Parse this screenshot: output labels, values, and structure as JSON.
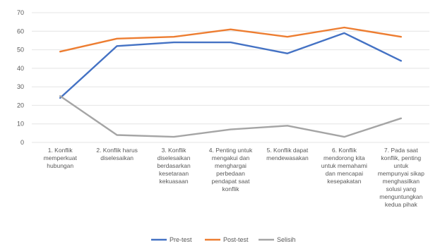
{
  "chart_data": {
    "type": "line",
    "title": "",
    "xlabel": "",
    "ylabel": "",
    "ylim": [
      0,
      70
    ],
    "y_ticks": [
      "0",
      "10",
      "20",
      "30",
      "40",
      "50",
      "60",
      "70"
    ],
    "grid": true,
    "legend_position": "bottom",
    "categories": [
      [
        "1. Konflik",
        "memperkuat",
        "hubungan"
      ],
      [
        "2. Konflik harus",
        "diselesaikan"
      ],
      [
        "3. Konflik",
        "diselesaikan",
        "berdasarkan",
        "kesetaraan",
        "kekuasaan"
      ],
      [
        "4. Penting untuk",
        "mengakui dan",
        "menghargai",
        "perbedaan",
        "pendapat saat",
        "konflik"
      ],
      [
        "5. Konflik dapat",
        "mendewasakan"
      ],
      [
        "6. Konflik",
        "mendorong kita",
        "untuk memahami",
        "dan mencapai",
        "kesepakatan"
      ],
      [
        "7. Pada saat",
        "konflik, penting",
        "untuk",
        "mempunyai sikap",
        "menghasilkan",
        "solusi yang",
        "menguntungkan",
        "kedua pihak"
      ]
    ],
    "series": [
      {
        "name": "Pre-test",
        "color": "#4472c4",
        "values": [
          24,
          52,
          54,
          54,
          48,
          59,
          44
        ]
      },
      {
        "name": "Post-test",
        "color": "#ed7d31",
        "values": [
          49,
          56,
          57,
          61,
          57,
          62,
          57
        ]
      },
      {
        "name": "Selisih",
        "color": "#a5a5a5",
        "values": [
          25,
          4,
          3,
          7,
          9,
          3,
          13
        ]
      }
    ]
  }
}
